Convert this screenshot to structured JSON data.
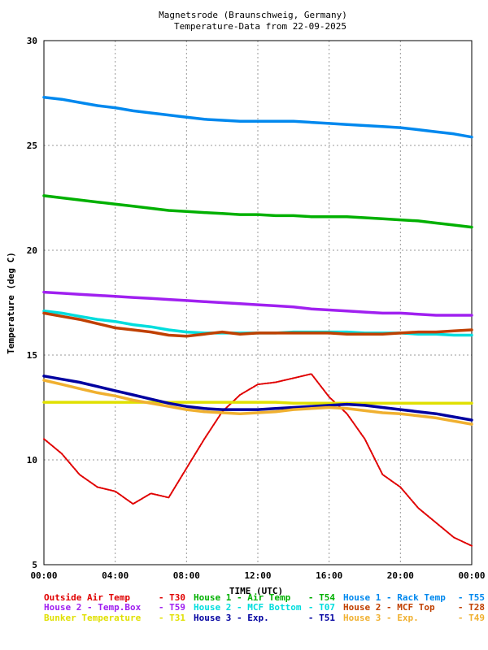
{
  "chart_data": {
    "type": "line",
    "title": "Magnetsrode (Braunschweig, Germany)",
    "subtitle": "Temperature-Data from 22-09-2025",
    "xlabel": "TIME (UTC)",
    "ylabel": "Temperature (deg C)",
    "xlim": [
      0,
      24
    ],
    "ylim": [
      5,
      30
    ],
    "x_ticks": [
      "00:00",
      "04:00",
      "08:00",
      "12:00",
      "16:00",
      "20:00",
      "00:00"
    ],
    "y_ticks": [
      "5",
      "10",
      "15",
      "20",
      "25",
      "30"
    ],
    "grid": true,
    "legend_position": "bottom",
    "x": [
      0,
      1,
      2,
      3,
      4,
      5,
      6,
      7,
      8,
      9,
      10,
      11,
      12,
      13,
      14,
      15,
      16,
      17,
      18,
      19,
      20,
      21,
      22,
      23,
      24
    ],
    "series": [
      {
        "name": "Outside Air Temp",
        "code": "T30",
        "color": "#e00000",
        "values": [
          11.0,
          10.3,
          9.3,
          8.7,
          8.5,
          7.9,
          8.4,
          8.2,
          9.6,
          11.0,
          12.3,
          13.1,
          13.6,
          13.7,
          13.9,
          14.1,
          13.0,
          12.2,
          11.0,
          9.3,
          8.7,
          7.7,
          7.0,
          6.3,
          5.9
        ]
      },
      {
        "name": "House 1 - Air  Temp",
        "code": "T54",
        "color": "#00b000",
        "values": [
          22.6,
          22.5,
          22.4,
          22.3,
          22.2,
          22.1,
          22.0,
          21.9,
          21.85,
          21.8,
          21.75,
          21.7,
          21.7,
          21.65,
          21.65,
          21.6,
          21.6,
          21.6,
          21.55,
          21.5,
          21.45,
          21.4,
          21.3,
          21.2,
          21.1
        ]
      },
      {
        "name": "House 1 - Rack Temp",
        "code": "T55",
        "color": "#0088ee",
        "values": [
          27.3,
          27.2,
          27.05,
          26.9,
          26.8,
          26.65,
          26.55,
          26.45,
          26.35,
          26.25,
          26.2,
          26.15,
          26.15,
          26.15,
          26.15,
          26.1,
          26.05,
          26.0,
          25.95,
          25.9,
          25.85,
          25.75,
          25.65,
          25.55,
          25.4
        ]
      },
      {
        "name": "House 2 - Temp.Box",
        "code": "T59",
        "color": "#a020f0",
        "values": [
          18.0,
          17.95,
          17.9,
          17.85,
          17.8,
          17.75,
          17.7,
          17.65,
          17.6,
          17.55,
          17.5,
          17.45,
          17.4,
          17.35,
          17.3,
          17.2,
          17.15,
          17.1,
          17.05,
          17.0,
          17.0,
          16.95,
          16.9,
          16.9,
          16.9
        ]
      },
      {
        "name": "House 2 - MCF Bottom",
        "code": "T07",
        "color": "#00dddd",
        "values": [
          17.1,
          17.0,
          16.85,
          16.7,
          16.6,
          16.45,
          16.35,
          16.2,
          16.1,
          16.05,
          16.05,
          16.05,
          16.05,
          16.05,
          16.1,
          16.1,
          16.1,
          16.1,
          16.05,
          16.05,
          16.05,
          16.0,
          16.0,
          15.95,
          15.95
        ]
      },
      {
        "name": "House 2 - MCF Top",
        "code": "T28",
        "color": "#c04000",
        "values": [
          17.0,
          16.85,
          16.7,
          16.5,
          16.3,
          16.2,
          16.1,
          15.95,
          15.9,
          16.0,
          16.1,
          16.0,
          16.05,
          16.05,
          16.05,
          16.05,
          16.05,
          16.0,
          16.0,
          16.0,
          16.05,
          16.1,
          16.1,
          16.15,
          16.2
        ]
      },
      {
        "name": "Bunker Temperature",
        "code": "T31",
        "color": "#e0e000",
        "values": [
          12.75,
          12.75,
          12.75,
          12.75,
          12.75,
          12.75,
          12.75,
          12.75,
          12.75,
          12.75,
          12.75,
          12.75,
          12.75,
          12.75,
          12.7,
          12.7,
          12.7,
          12.7,
          12.7,
          12.7,
          12.7,
          12.7,
          12.7,
          12.7,
          12.7
        ]
      },
      {
        "name": "House 3 - Exp.",
        "code": "T51",
        "color": "#0000a0",
        "values": [
          14.0,
          13.85,
          13.7,
          13.5,
          13.3,
          13.1,
          12.9,
          12.7,
          12.55,
          12.45,
          12.4,
          12.4,
          12.4,
          12.45,
          12.5,
          12.55,
          12.6,
          12.65,
          12.6,
          12.5,
          12.4,
          12.3,
          12.2,
          12.05,
          11.9
        ]
      },
      {
        "name": "House 3 - Exp.",
        "code": "T49",
        "color": "#f0b030",
        "values": [
          13.8,
          13.6,
          13.4,
          13.2,
          13.05,
          12.85,
          12.7,
          12.55,
          12.4,
          12.3,
          12.25,
          12.2,
          12.25,
          12.3,
          12.4,
          12.45,
          12.5,
          12.45,
          12.35,
          12.25,
          12.2,
          12.1,
          12.0,
          11.85,
          11.7
        ]
      }
    ]
  },
  "legend_layout_order": [
    0,
    3,
    6,
    1,
    4,
    7,
    2,
    5,
    8
  ]
}
